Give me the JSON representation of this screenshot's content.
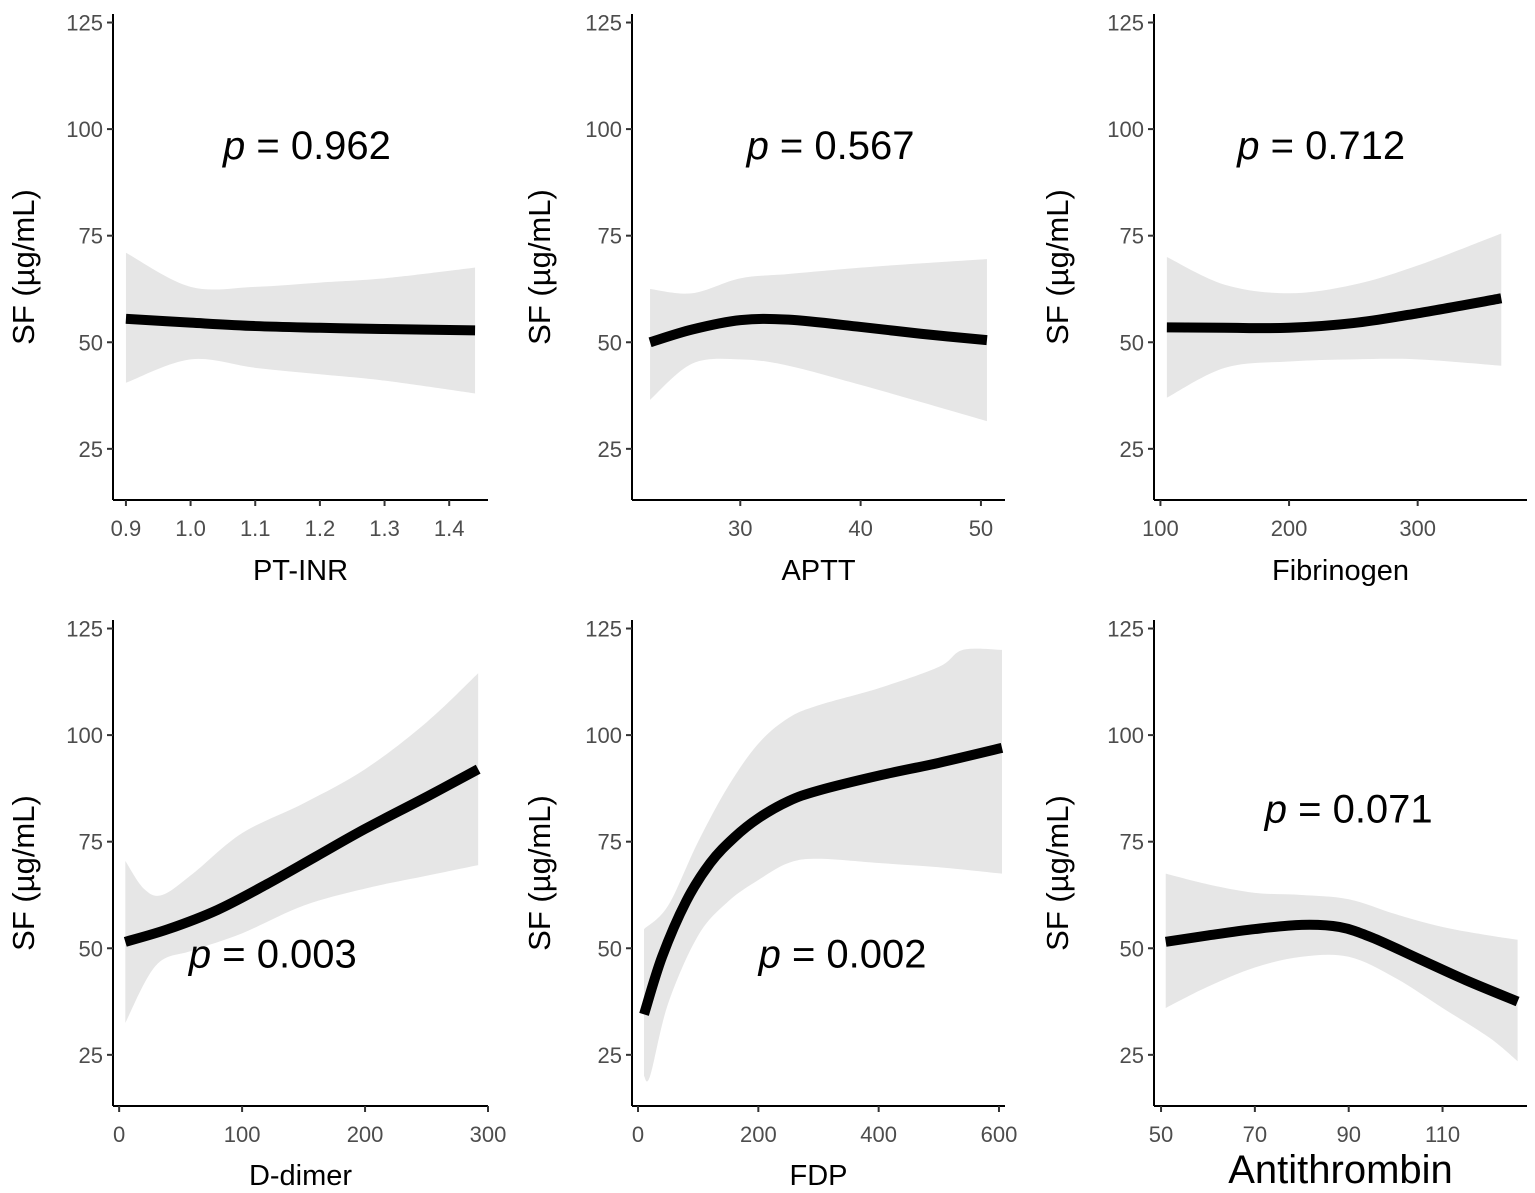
{
  "chart_data": [
    {
      "type": "line",
      "xlabel": "PT-INR",
      "ylabel": "SF (µg/mL)",
      "annotation": {
        "p_symbol": "p",
        "p_value": "= 0.962",
        "at": [
          1.18,
          93
        ]
      },
      "xlim": [
        0.88,
        1.46
      ],
      "ylim": [
        13,
        127
      ],
      "xticks": [
        0.9,
        1.0,
        1.1,
        1.2,
        1.3,
        1.4
      ],
      "xtick_labels": [
        "0.9",
        "1.0",
        "1.1",
        "1.2",
        "1.3",
        "1.4"
      ],
      "yticks": [
        25,
        50,
        75,
        100,
        125
      ],
      "ytick_labels": [
        "25",
        "50",
        "75",
        "100",
        "125"
      ],
      "series": [
        {
          "name": "fit",
          "x": [
            0.9,
            1.0,
            1.1,
            1.2,
            1.3,
            1.44
          ],
          "values": [
            55.5,
            54.6,
            53.8,
            53.4,
            53.1,
            52.8
          ]
        },
        {
          "name": "ci_upper",
          "x": [
            0.9,
            1.0,
            1.1,
            1.2,
            1.3,
            1.44
          ],
          "values": [
            71,
            63,
            63,
            64,
            65,
            67.5
          ]
        },
        {
          "name": "ci_lower",
          "x": [
            0.9,
            1.0,
            1.1,
            1.2,
            1.3,
            1.44
          ],
          "values": [
            40.5,
            46,
            44,
            42.5,
            41,
            38
          ]
        }
      ]
    },
    {
      "type": "line",
      "xlabel": "APTT",
      "ylabel": "SF (µg/mL)",
      "annotation": {
        "p_symbol": "p",
        "p_value": "= 0.567",
        "at": [
          37.5,
          93
        ]
      },
      "xlim": [
        21,
        52
      ],
      "ylim": [
        13,
        127
      ],
      "xticks": [
        30,
        40,
        50
      ],
      "xtick_labels": [
        "30",
        "40",
        "50"
      ],
      "yticks": [
        25,
        50,
        75,
        100,
        125
      ],
      "ytick_labels": [
        "25",
        "50",
        "75",
        "100",
        "125"
      ],
      "series": [
        {
          "name": "fit",
          "x": [
            22.5,
            26,
            30,
            34,
            40,
            45,
            50.5
          ],
          "values": [
            50,
            53,
            55.2,
            55.3,
            53.6,
            52,
            50.5
          ]
        },
        {
          "name": "ci_upper",
          "x": [
            22.5,
            26,
            30,
            34,
            40,
            45,
            50.5
          ],
          "values": [
            62.5,
            61.5,
            65,
            66,
            67.5,
            68.5,
            69.5
          ]
        },
        {
          "name": "ci_lower",
          "x": [
            22.5,
            26,
            30,
            34,
            40,
            45,
            50.5
          ],
          "values": [
            36.5,
            45,
            46,
            44.5,
            40,
            36,
            31.5
          ]
        }
      ]
    },
    {
      "type": "line",
      "xlabel": "Fibrinogen",
      "ylabel": "SF (µg/mL)",
      "annotation": {
        "p_symbol": "p",
        "p_value": "= 0.712",
        "at": [
          225,
          93
        ]
      },
      "xlim": [
        95,
        385
      ],
      "ylim": [
        13,
        127
      ],
      "xticks": [
        100,
        200,
        300
      ],
      "xtick_labels": [
        "100",
        "200",
        "300"
      ],
      "yticks": [
        25,
        50,
        75,
        100,
        125
      ],
      "ytick_labels": [
        "25",
        "50",
        "75",
        "100",
        "125"
      ],
      "series": [
        {
          "name": "fit",
          "x": [
            105,
            150,
            200,
            250,
            300,
            365
          ],
          "values": [
            53.5,
            53.4,
            53.4,
            54.5,
            56.8,
            60.3
          ]
        },
        {
          "name": "ci_upper",
          "x": [
            105,
            150,
            200,
            250,
            300,
            365
          ],
          "values": [
            70,
            63.5,
            61.5,
            63.5,
            68,
            75.5
          ]
        },
        {
          "name": "ci_lower",
          "x": [
            105,
            150,
            200,
            250,
            300,
            365
          ],
          "values": [
            37,
            44,
            45.5,
            46,
            46,
            44.5
          ]
        }
      ]
    },
    {
      "type": "line",
      "xlabel": "D-dimer",
      "ylabel": "SF (µg/mL)",
      "annotation": {
        "p_symbol": "p",
        "p_value": "= 0.003",
        "at": [
          125,
          45.5
        ]
      },
      "xlim": [
        -5,
        300
      ],
      "ylim": [
        13,
        127
      ],
      "xticks": [
        0,
        100,
        200,
        300
      ],
      "xtick_labels": [
        "0",
        "100",
        "200",
        "300"
      ],
      "yticks": [
        25,
        50,
        75,
        100,
        125
      ],
      "ytick_labels": [
        "25",
        "50",
        "75",
        "100",
        "125"
      ],
      "series": [
        {
          "name": "fit",
          "x": [
            5,
            40,
            80,
            120,
            160,
            200,
            250,
            292
          ],
          "values": [
            51.5,
            54.5,
            59,
            65,
            71.5,
            78,
            85.5,
            92
          ]
        },
        {
          "name": "ci_upper",
          "x": [
            5,
            20,
            35,
            60,
            100,
            150,
            200,
            250,
            292
          ],
          "values": [
            70.5,
            64,
            62.5,
            67.5,
            77,
            84,
            92,
            103,
            114.5
          ]
        },
        {
          "name": "ci_lower",
          "x": [
            5,
            30,
            60,
            100,
            150,
            200,
            250,
            292
          ],
          "values": [
            32.5,
            46,
            49.5,
            53.5,
            60,
            64,
            67,
            69.5
          ]
        }
      ]
    },
    {
      "type": "line",
      "xlabel": "FDP",
      "ylabel": "SF (µg/mL)",
      "annotation": {
        "p_symbol": "p",
        "p_value": "= 0.002",
        "at": [
          340,
          45.5
        ]
      },
      "xlim": [
        -10,
        610
      ],
      "ylim": [
        13,
        127
      ],
      "xticks": [
        0,
        200,
        400,
        600
      ],
      "xtick_labels": [
        "0",
        "200",
        "400",
        "600"
      ],
      "yticks": [
        25,
        50,
        75,
        100,
        125
      ],
      "ytick_labels": [
        "25",
        "50",
        "75",
        "100",
        "125"
      ],
      "series": [
        {
          "name": "fit",
          "x": [
            10,
            40,
            80,
            120,
            160,
            200,
            250,
            300,
            400,
            500,
            605
          ],
          "values": [
            34.5,
            48,
            61,
            70,
            76,
            80.5,
            84.5,
            87,
            90.5,
            93.5,
            97
          ]
        },
        {
          "name": "ci_upper",
          "x": [
            10,
            50,
            100,
            150,
            200,
            250,
            300,
            400,
            500,
            540,
            605
          ],
          "values": [
            54.5,
            60,
            75,
            88,
            98,
            104,
            107,
            111,
            116,
            120,
            120
          ]
        },
        {
          "name": "ci_lower",
          "x": [
            10,
            20,
            50,
            100,
            150,
            200,
            250,
            300,
            400,
            500,
            605
          ],
          "values": [
            20,
            20,
            37,
            53,
            61,
            66,
            70,
            71,
            70,
            69,
            67.5
          ]
        }
      ]
    },
    {
      "type": "line",
      "xlabel": "Antithrombin",
      "ylabel": "SF (µg/mL)",
      "annotation": {
        "p_symbol": "p",
        "p_value": "= 0.071",
        "at": [
          90,
          79.5
        ]
      },
      "xlim": [
        48.5,
        128
      ],
      "ylim": [
        13,
        127
      ],
      "xticks": [
        50,
        70,
        90,
        110
      ],
      "xtick_labels": [
        "50",
        "70",
        "90",
        "110"
      ],
      "yticks": [
        25,
        50,
        75,
        100,
        125
      ],
      "ytick_labels": [
        "25",
        "50",
        "75",
        "100",
        "125"
      ],
      "series": [
        {
          "name": "fit",
          "x": [
            51,
            60,
            70,
            80,
            88,
            95,
            105,
            115,
            126
          ],
          "values": [
            51.5,
            53,
            54.5,
            55.5,
            55,
            52.5,
            47.5,
            42.5,
            37.5
          ]
        },
        {
          "name": "ci_upper",
          "x": [
            51,
            60,
            70,
            80,
            90,
            100,
            110,
            120,
            126
          ],
          "values": [
            67.5,
            65,
            63,
            62.5,
            61.5,
            58,
            55,
            53,
            52
          ]
        },
        {
          "name": "ci_lower",
          "x": [
            51,
            60,
            70,
            80,
            90,
            100,
            110,
            120,
            126
          ],
          "values": [
            36,
            41,
            45.5,
            48,
            48,
            43,
            36,
            29,
            23.5
          ]
        }
      ]
    }
  ]
}
